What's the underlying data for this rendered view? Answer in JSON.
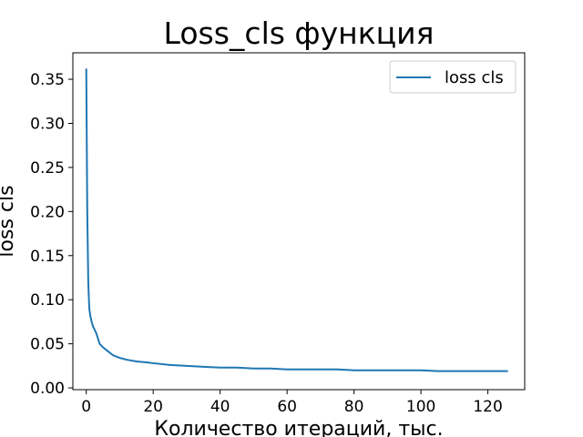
{
  "chart_data": {
    "type": "line",
    "title": "Loss_cls функция",
    "xlabel": "Количество итераций, тыс.",
    "ylabel": "loss cls",
    "xlim": [
      -4,
      131
    ],
    "ylim": [
      -0.002,
      0.38
    ],
    "xticks": [
      0,
      20,
      40,
      60,
      80,
      100,
      120
    ],
    "yticks": [
      0.0,
      0.05,
      0.1,
      0.15,
      0.2,
      0.25,
      0.3,
      0.35
    ],
    "xtick_labels": [
      "0",
      "20",
      "40",
      "60",
      "80",
      "100",
      "120"
    ],
    "ytick_labels": [
      "0.00",
      "0.05",
      "0.10",
      "0.15",
      "0.20",
      "0.25",
      "0.30",
      "0.35"
    ],
    "grid": false,
    "legend_position": "top-right",
    "series": [
      {
        "name": "loss cls",
        "color": "#1f77b4",
        "x": [
          0,
          0.3,
          0.6,
          0.9,
          1.2,
          1.6,
          2,
          2.5,
          3,
          3.5,
          4,
          5,
          6,
          7,
          8,
          10,
          12,
          15,
          18,
          20,
          25,
          30,
          35,
          40,
          45,
          50,
          55,
          60,
          65,
          70,
          75,
          80,
          85,
          90,
          95,
          100,
          105,
          110,
          115,
          120,
          126
        ],
        "y": [
          0.362,
          0.2,
          0.12,
          0.09,
          0.082,
          0.075,
          0.07,
          0.066,
          0.062,
          0.056,
          0.05,
          0.046,
          0.043,
          0.04,
          0.037,
          0.034,
          0.032,
          0.03,
          0.029,
          0.028,
          0.026,
          0.025,
          0.024,
          0.023,
          0.023,
          0.022,
          0.022,
          0.021,
          0.021,
          0.021,
          0.021,
          0.02,
          0.02,
          0.02,
          0.02,
          0.02,
          0.019,
          0.019,
          0.019,
          0.019,
          0.019
        ]
      }
    ]
  }
}
